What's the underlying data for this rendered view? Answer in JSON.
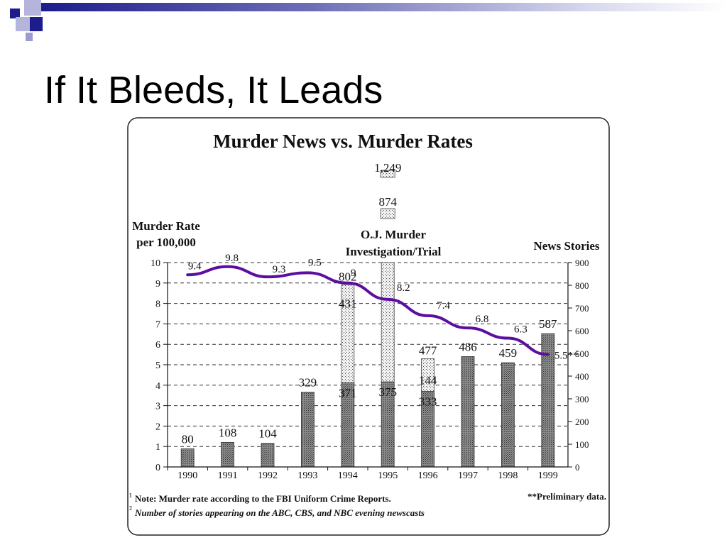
{
  "slide": {
    "title": "If It Bleeds, It Leads"
  },
  "colors": {
    "accent_blue": "#1c1c8c",
    "deco_light": "#9c9cd0",
    "murder_line": "#5b0ea0",
    "bar_fill": "#6e6e6e",
    "oj_fill": "#e6e6e6"
  },
  "chart_data": {
    "type": "bar",
    "title": "Murder News vs. Murder Rates",
    "left_axis_label_line1": "Murder Rate",
    "left_axis_label_line2": "per 100,000",
    "right_axis_label": "News Stories",
    "categories": [
      "1990",
      "1991",
      "1992",
      "1993",
      "1994",
      "1995",
      "1996",
      "1997",
      "1998",
      "1999"
    ],
    "left_ylim": [
      0,
      10
    ],
    "right_ylim": [
      0,
      900
    ],
    "left_ticks": [
      "0",
      "1",
      "2",
      "3",
      "4",
      "5",
      "6",
      "7",
      "8",
      "9",
      "10"
    ],
    "right_ticks": [
      "0",
      "100",
      "200",
      "300",
      "400",
      "500",
      "600",
      "700",
      "800",
      "900"
    ],
    "grid": "dashed horizontal",
    "series": [
      {
        "name": "News Stories",
        "kind": "bar",
        "values": [
          80,
          108,
          104,
          329,
          371,
          375,
          333,
          486,
          459,
          587
        ],
        "labels": [
          "80",
          "108",
          "104",
          "329",
          "371",
          "375",
          "333",
          "486",
          "459",
          "587"
        ]
      },
      {
        "name": "O.J. Murder Investigation/Trial",
        "kind": "stacked-bar",
        "segments": [
          {
            "category": "1994",
            "value": 431,
            "total": 802,
            "value_label": "431",
            "total_label": "802"
          },
          {
            "category": "1995",
            "value": 874,
            "total": 1249,
            "value_label": "874",
            "total_label": "1,249"
          },
          {
            "category": "1996",
            "value": 144,
            "total": 477,
            "value_label": "144",
            "total_label": "477"
          }
        ]
      },
      {
        "name": "Murder Rate",
        "kind": "line",
        "values": [
          9.4,
          9.8,
          9.3,
          9.5,
          9,
          8.2,
          7.4,
          6.8,
          6.3,
          5.5
        ],
        "labels": [
          "9.4",
          "9.8",
          "9.3",
          "9.5",
          "9",
          "8.2",
          "7.4",
          "6.8",
          "6.3",
          "5.5**"
        ]
      }
    ],
    "annotations": {
      "oj_line1": "O.J. Murder",
      "oj_line2": "Investigation/Trial",
      "note1": "Note: Murder rate according to the FBI Uniform Crime Reports.",
      "note2": "Number of stories appearing on the ABC, CBS, and NBC evening newscasts",
      "note3": "**Preliminary data."
    }
  }
}
